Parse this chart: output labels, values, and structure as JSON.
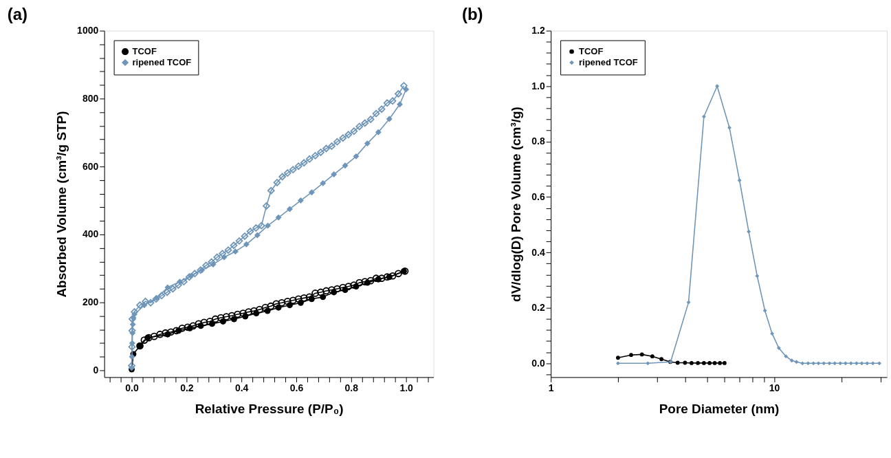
{
  "chart_data": [
    {
      "type": "line",
      "title": "(a)",
      "xlabel": "Relative Pressure (P/P₀)",
      "ylabel": "Absorbed Volume (cm³/g STP)",
      "xlim": [
        -0.1,
        1.1
      ],
      "ylim": [
        -20,
        1000
      ],
      "xticks": [
        {
          "value": -0.08,
          "label": null
        },
        {
          "value": -0.04,
          "label": null
        },
        {
          "value": 0,
          "label": "0.0"
        },
        {
          "value": 0.04,
          "label": null
        },
        {
          "value": 0.08,
          "label": null
        },
        {
          "value": 0.12,
          "label": null
        },
        {
          "value": 0.16,
          "label": null
        },
        0.2,
        {
          "value": 0.24,
          "label": null
        },
        {
          "value": 0.28,
          "label": null
        },
        {
          "value": 0.32,
          "label": null
        },
        {
          "value": 0.36,
          "label": null
        },
        0.4,
        {
          "value": 0.44,
          "label": null
        },
        {
          "value": 0.48,
          "label": null
        },
        {
          "value": 0.52,
          "label": null
        },
        {
          "value": 0.56,
          "label": null
        },
        0.6,
        {
          "value": 0.64,
          "label": null
        },
        {
          "value": 0.68,
          "label": null
        },
        {
          "value": 0.72,
          "label": null
        },
        {
          "value": 0.76,
          "label": null
        },
        0.8,
        {
          "value": 0.84,
          "label": null
        },
        {
          "value": 0.88,
          "label": null
        },
        {
          "value": 0.92,
          "label": null
        },
        {
          "value": 0.96,
          "label": null
        },
        {
          "value": 1,
          "label": "1.0"
        },
        {
          "value": 1.04,
          "label": null
        },
        {
          "value": 1.08,
          "label": null
        }
      ],
      "yticks": [
        0,
        {
          "value": 40,
          "label": null
        },
        {
          "value": 80,
          "label": null
        },
        {
          "value": 120,
          "label": null
        },
        {
          "value": 160,
          "label": null
        },
        200,
        {
          "value": 240,
          "label": null
        },
        {
          "value": 280,
          "label": null
        },
        {
          "value": 320,
          "label": null
        },
        {
          "value": 360,
          "label": null
        },
        400,
        {
          "value": 440,
          "label": null
        },
        {
          "value": 480,
          "label": null
        },
        {
          "value": 520,
          "label": null
        },
        {
          "value": 560,
          "label": null
        },
        600,
        {
          "value": 640,
          "label": null
        },
        {
          "value": 680,
          "label": null
        },
        {
          "value": 720,
          "label": null
        },
        {
          "value": 760,
          "label": null
        },
        800,
        {
          "value": 840,
          "label": null
        },
        {
          "value": 880,
          "label": null
        },
        {
          "value": 920,
          "label": null
        },
        {
          "value": 960,
          "label": null
        },
        1000
      ],
      "legend": "top left",
      "grid": false,
      "line_style": "solid",
      "series": [
        {
          "name": "TCOF",
          "color": "#000000",
          "marker": "circle",
          "x": [
            0,
            0.006,
            0.03,
            0.058,
            0.131,
            0.171,
            0.212,
            0.252,
            0.293,
            0.333,
            0.373,
            0.414,
            0.454,
            0.495,
            0.535,
            0.576,
            0.616,
            0.656,
            0.697,
            0.737,
            0.778,
            0.818,
            0.859,
            0.899,
            0.939,
            0.992
          ],
          "values": [
            3,
            48,
            72,
            96,
            106,
            117,
            124,
            131,
            137,
            144,
            151,
            159,
            168,
            175,
            185,
            192,
            199,
            210,
            216,
            230,
            237,
            247,
            258,
            268,
            275,
            292
          ]
        },
        {
          "color": "#000000",
          "marker": "circle",
          "x": [
            0.996,
            0.972,
            0.951,
            0.931,
            0.911,
            0.891,
            0.871,
            0.85,
            0.83,
            0.81,
            0.79,
            0.77,
            0.749,
            0.729,
            0.709,
            0.689,
            0.669,
            0.648,
            0.628,
            0.608,
            0.588,
            0.568,
            0.547,
            0.527,
            0.507,
            0.487,
            0.466,
            0.446,
            0.426,
            0.406,
            0.386,
            0.365,
            0.345,
            0.325,
            0.305,
            0.285,
            0.264,
            0.244,
            0.224,
            0.204,
            0.184,
            0.163,
            0.143,
            0.123,
            0.103,
            0.082,
            0.062,
            0.046,
            0.03
          ],
          "values": [
            292,
            285,
            278,
            275,
            271,
            271,
            264,
            261,
            258,
            251,
            247,
            244,
            240,
            237,
            234,
            230,
            227,
            216,
            213,
            210,
            206,
            203,
            199,
            196,
            189,
            185,
            179,
            175,
            172,
            168,
            165,
            161,
            158,
            155,
            151,
            144,
            141,
            137,
            131,
            127,
            124,
            117,
            113,
            110,
            106,
            100,
            96,
            89,
            72
          ]
        },
        {
          "name": "ripened TCOF",
          "color": "#6f96b9",
          "marker": "diamond",
          "x": [
            0,
            0.001,
            0.002,
            0.003,
            0.004,
            0.006,
            0.01,
            0.046,
            0.091,
            0.131,
            0.175,
            0.216,
            0.256,
            0.297,
            0.337,
            0.378,
            0.418,
            0.458,
            0.496,
            0.535,
            0.576,
            0.616,
            0.656,
            0.697,
            0.737,
            0.778,
            0.818,
            0.859,
            0.899,
            0.939,
            0.977,
            1.0
          ],
          "values": [
            7,
            40,
            80,
            110,
            135,
            155,
            165,
            192,
            213,
            244,
            261,
            278,
            295,
            312,
            333,
            350,
            371,
            398,
            426,
            450,
            475,
            500,
            524,
            551,
            577,
            603,
            630,
            668,
            701,
            740,
            783,
            827
          ]
        },
        {
          "color": "#6f96b9",
          "marker": "diamond",
          "x": [
            0.992,
            0.972,
            0.951,
            0.931,
            0.911,
            0.891,
            0.871,
            0.85,
            0.83,
            0.81,
            0.79,
            0.77,
            0.749,
            0.729,
            0.709,
            0.689,
            0.669,
            0.648,
            0.628,
            0.608,
            0.588,
            0.568,
            0.549,
            0.53,
            0.508,
            0.491,
            0.473,
            0.453,
            0.432,
            0.412,
            0.392,
            0.372,
            0.352,
            0.331,
            0.311,
            0.291,
            0.271,
            0.251,
            0.23,
            0.21,
            0.19,
            0.17,
            0.15,
            0.129,
            0.109,
            0.089,
            0.069,
            0.05,
            0.03,
            0.01,
            0.002,
            0.0015,
            0.001,
            0
          ],
          "values": [
            838,
            814,
            793,
            787,
            769,
            756,
            739,
            728,
            718,
            704,
            694,
            684,
            673,
            660,
            653,
            642,
            632,
            622,
            611,
            601,
            591,
            581,
            570,
            553,
            529,
            484,
            426,
            419,
            409,
            395,
            381,
            368,
            354,
            344,
            333,
            319,
            309,
            295,
            285,
            275,
            261,
            251,
            240,
            230,
            220,
            210,
            199,
            203,
            192,
            172,
            151,
            117,
            69,
            14
          ]
        }
      ]
    },
    {
      "type": "line",
      "title": "(b)",
      "xlabel": "Pore Diameter (nm)",
      "ylabel": "dV/dlog(D) Pore Volume (cm³/g)",
      "log": "x",
      "xlim": [
        1,
        32
      ],
      "ylim": [
        -0.05,
        1.2
      ],
      "xticks": [
        1,
        {
          "value": 2,
          "label": null
        },
        {
          "value": 3,
          "label": null
        },
        {
          "value": 4,
          "label": null
        },
        {
          "value": 5,
          "label": null
        },
        {
          "value": 6,
          "label": null
        },
        {
          "value": 7,
          "label": null
        },
        {
          "value": 8,
          "label": null
        },
        {
          "value": 9,
          "label": null
        },
        10,
        {
          "value": 20,
          "label": null
        },
        {
          "value": 30,
          "label": null
        }
      ],
      "yticks": [
        {
          "value": -0.04,
          "label": null
        },
        {
          "value": 0,
          "label": "0.0"
        },
        {
          "value": 0.04,
          "label": null
        },
        {
          "value": 0.08,
          "label": null
        },
        {
          "value": 0.12,
          "label": null
        },
        {
          "value": 0.16,
          "label": null
        },
        0.2,
        {
          "value": 0.24,
          "label": null
        },
        {
          "value": 0.28,
          "label": null
        },
        {
          "value": 0.32,
          "label": null
        },
        {
          "value": 0.36,
          "label": null
        },
        0.4,
        {
          "value": 0.44,
          "label": null
        },
        {
          "value": 0.48,
          "label": null
        },
        {
          "value": 0.52,
          "label": null
        },
        {
          "value": 0.56,
          "label": null
        },
        0.6,
        {
          "value": 0.64,
          "label": null
        },
        {
          "value": 0.68,
          "label": null
        },
        {
          "value": 0.72,
          "label": null
        },
        {
          "value": 0.76,
          "label": null
        },
        0.8,
        {
          "value": 0.84,
          "label": null
        },
        {
          "value": 0.88,
          "label": null
        },
        {
          "value": 0.92,
          "label": null
        },
        {
          "value": 0.96,
          "label": null
        },
        {
          "value": 1,
          "label": "1.0"
        },
        {
          "value": 1.04,
          "label": null
        },
        {
          "value": 1.08,
          "label": null
        },
        {
          "value": 1.12,
          "label": null
        },
        {
          "value": 1.16,
          "label": null
        },
        1.2
      ],
      "legend": "top left",
      "grid": false,
      "line_style": "solid",
      "series": [
        {
          "name": "TCOF",
          "color": "#000000",
          "marker": "circle",
          "x": [
            2.0,
            2.29,
            2.56,
            2.85,
            3.13,
            3.43,
            3.7,
            3.99,
            4.27,
            4.56,
            4.85,
            5.14,
            5.42,
            5.72,
            6.0
          ],
          "values": [
            0.02,
            0.03,
            0.032,
            0.025,
            0.015,
            0.005,
            0.002,
            0.002,
            0.001,
            0.001,
            0.001,
            0.001,
            0.001,
            0.001,
            0.001
          ]
        },
        {
          "name": "ripened TCOF",
          "color": "#6f96b9",
          "marker": "diamond",
          "x": [
            2.0,
            2.72,
            3.44,
            4.14,
            4.85,
            5.56,
            6.31,
            7.0,
            7.7,
            8.4,
            9.1,
            9.8,
            10.5,
            11.3,
            12.0,
            12.6,
            13.4,
            14.2,
            15.0,
            15.8,
            16.7,
            17.7,
            18.7,
            19.8,
            20.9,
            22.1,
            23.4,
            24.7,
            26.1,
            27.7,
            29.6
          ],
          "values": [
            0,
            0,
            0.005,
            0.22,
            0.89,
            1.0,
            0.85,
            0.66,
            0.475,
            0.315,
            0.19,
            0.107,
            0.055,
            0.025,
            0.01,
            0.005,
            0,
            0,
            0,
            0,
            0,
            0,
            0,
            0,
            0,
            0,
            0,
            0,
            0,
            0,
            0
          ]
        }
      ]
    }
  ]
}
